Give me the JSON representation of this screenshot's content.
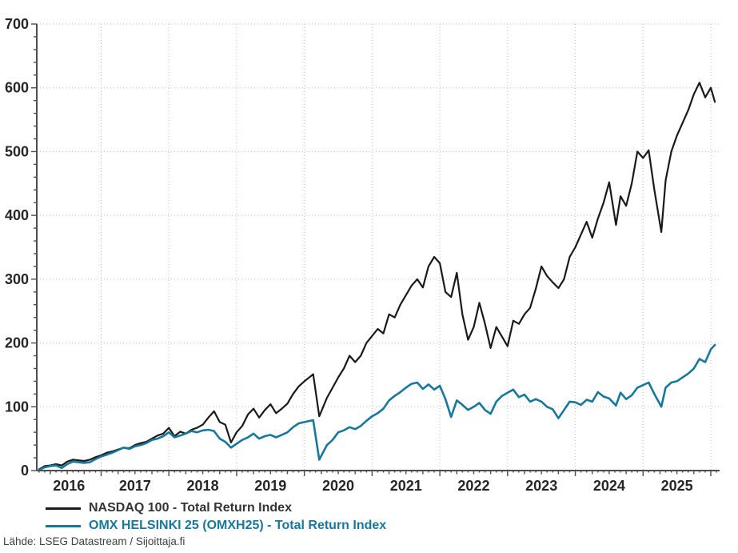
{
  "chart_data": {
    "type": "line",
    "title": "",
    "grid": "dotted",
    "legend_position": "bottom-left",
    "x_axis": {
      "min": 2016.05,
      "max": 2026.13,
      "gridline_years": [
        2017,
        2018,
        2019,
        2020,
        2021,
        2022,
        2023,
        2024,
        2025,
        2026
      ],
      "year_labels": [
        "2016",
        "2017",
        "2018",
        "2019",
        "2020",
        "2021",
        "2022",
        "2023",
        "2024",
        "2025"
      ],
      "minor_tick_months": 1
    },
    "y_axis": {
      "min": 0,
      "max": 700,
      "major_ticks": [
        0,
        100,
        200,
        300,
        400,
        500,
        600,
        700
      ],
      "minor_tick_step": 20
    },
    "x": [
      2016.083,
      2016.167,
      2016.25,
      2016.333,
      2016.417,
      2016.5,
      2016.583,
      2016.667,
      2016.75,
      2016.833,
      2016.917,
      2017.0,
      2017.083,
      2017.167,
      2017.25,
      2017.333,
      2017.417,
      2017.5,
      2017.583,
      2017.667,
      2017.75,
      2017.833,
      2017.917,
      2018.0,
      2018.083,
      2018.167,
      2018.25,
      2018.333,
      2018.417,
      2018.5,
      2018.583,
      2018.667,
      2018.75,
      2018.833,
      2018.917,
      2019.0,
      2019.083,
      2019.167,
      2019.25,
      2019.333,
      2019.417,
      2019.5,
      2019.583,
      2019.667,
      2019.75,
      2019.833,
      2019.917,
      2020.0,
      2020.13,
      2020.22,
      2020.333,
      2020.417,
      2020.5,
      2020.583,
      2020.667,
      2020.75,
      2020.833,
      2020.917,
      2021.0,
      2021.083,
      2021.167,
      2021.25,
      2021.333,
      2021.417,
      2021.5,
      2021.583,
      2021.667,
      2021.75,
      2021.833,
      2021.917,
      2022.0,
      2022.083,
      2022.167,
      2022.25,
      2022.333,
      2022.417,
      2022.5,
      2022.583,
      2022.667,
      2022.75,
      2022.833,
      2022.917,
      2023.0,
      2023.083,
      2023.167,
      2023.25,
      2023.333,
      2023.417,
      2023.5,
      2023.583,
      2023.667,
      2023.75,
      2023.833,
      2023.917,
      2024.0,
      2024.083,
      2024.167,
      2024.25,
      2024.333,
      2024.417,
      2024.5,
      2024.6,
      2024.667,
      2024.75,
      2024.833,
      2024.917,
      2025.0,
      2025.083,
      2025.167,
      2025.27,
      2025.333,
      2025.417,
      2025.5,
      2025.583,
      2025.667,
      2025.75,
      2025.833,
      2025.917,
      2026.0,
      2026.06
    ],
    "series": [
      {
        "name": "NASDAQ 100 - Total Return Index",
        "color": "#1a1a1a",
        "label_color": "#333333",
        "stroke_width": 2.2,
        "values": [
          2,
          7,
          8,
          10,
          8,
          14,
          17,
          16,
          15,
          17,
          21,
          24,
          28,
          30,
          33,
          36,
          35,
          40,
          43,
          45,
          50,
          55,
          58,
          67,
          54,
          61,
          58,
          64,
          67,
          72,
          83,
          93,
          76,
          72,
          44,
          60,
          70,
          88,
          97,
          83,
          95,
          104,
          90,
          97,
          105,
          120,
          132,
          140,
          151,
          85,
          114,
          130,
          146,
          160,
          180,
          170,
          180,
          200,
          211,
          222,
          215,
          245,
          240,
          260,
          275,
          290,
          300,
          287,
          320,
          335,
          325,
          280,
          272,
          310,
          245,
          205,
          225,
          263,
          230,
          192,
          225,
          210,
          195,
          235,
          230,
          245,
          255,
          285,
          320,
          305,
          295,
          286,
          300,
          335,
          350,
          370,
          390,
          365,
          395,
          420,
          452,
          385,
          430,
          415,
          450,
          500,
          490,
          502,
          440,
          374,
          455,
          500,
          525,
          545,
          565,
          590,
          608,
          585,
          600,
          578
        ]
      },
      {
        "name": "OMX HELSINKI 25 (OMXH25) - Total Return Index",
        "color": "#17789b",
        "label_color": "#17789b",
        "stroke_width": 2.6,
        "values": [
          1,
          5,
          7,
          8,
          4,
          10,
          14,
          13,
          12,
          13,
          18,
          22,
          25,
          28,
          32,
          36,
          34,
          38,
          40,
          43,
          48,
          50,
          54,
          60,
          52,
          55,
          58,
          62,
          60,
          63,
          64,
          62,
          50,
          45,
          36,
          42,
          48,
          52,
          58,
          50,
          54,
          56,
          52,
          56,
          60,
          68,
          74,
          76,
          79,
          17,
          40,
          48,
          60,
          63,
          68,
          65,
          70,
          78,
          85,
          90,
          97,
          110,
          117,
          123,
          130,
          136,
          138,
          128,
          135,
          127,
          133,
          112,
          84,
          110,
          103,
          95,
          100,
          106,
          95,
          89,
          108,
          117,
          122,
          127,
          115,
          119,
          108,
          112,
          108,
          100,
          96,
          82,
          95,
          108,
          107,
          103,
          111,
          108,
          123,
          116,
          113,
          102,
          122,
          112,
          118,
          130,
          134,
          138,
          120,
          100,
          130,
          138,
          140,
          146,
          152,
          160,
          175,
          170,
          190,
          197
        ]
      }
    ]
  },
  "footer": {
    "source": "Lähde: LSEG Datastream / Sijoittaja.fi"
  }
}
